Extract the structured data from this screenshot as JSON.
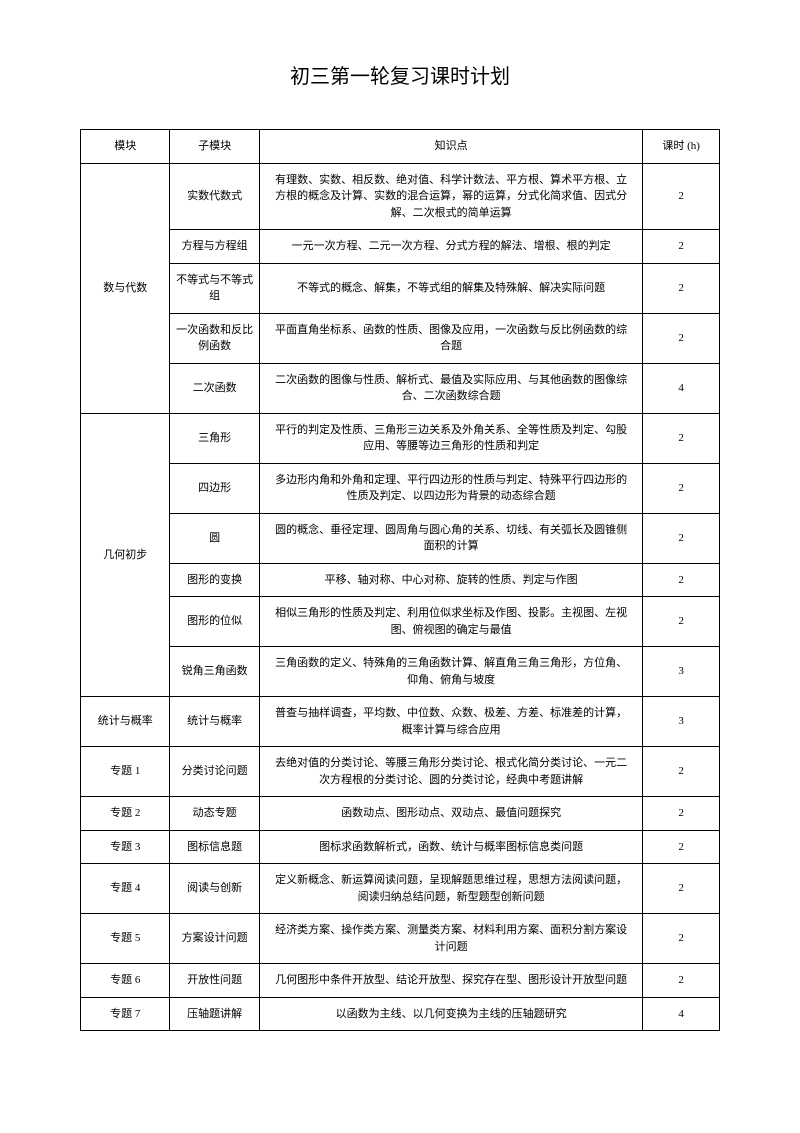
{
  "title": "初三第一轮复习课时计划",
  "headers": {
    "module": "模块",
    "sub": "子模块",
    "knowledge": "知识点",
    "hours": "课时 (h)"
  },
  "modules": [
    {
      "name": "数与代数",
      "rows": [
        {
          "sub": "实数代数式",
          "knowledge": "有理数、实数、相反数、绝对值、科学计数法、平方根、算术平方根、立方根的概念及计算、实数的混合运算，幂的运算，分式化简求值、因式分解、二次根式的简单运算",
          "hours": "2"
        },
        {
          "sub": "方程与方程组",
          "knowledge": "一元一次方程、二元一次方程、分式方程的解法、增根、根的判定",
          "hours": "2"
        },
        {
          "sub": "不等式与不等式组",
          "knowledge": "不等式的概念、解集，不等式组的解集及特殊解、解决实际问题",
          "hours": "2"
        },
        {
          "sub": "一次函数和反比例函数",
          "knowledge": "平面直角坐标系、函数的性质、图像及应用，一次函数与反比例函数的综合题",
          "hours": "2"
        },
        {
          "sub": "二次函数",
          "knowledge": "二次函数的图像与性质、解析式、最值及实际应用、与其他函数的图像综合、二次函数综合题",
          "hours": "4"
        }
      ]
    },
    {
      "name": "几何初步",
      "rows": [
        {
          "sub": "三角形",
          "knowledge": "平行的判定及性质、三角形三边关系及外角关系、全等性质及判定、勾股应用、等腰等边三角形的性质和判定",
          "hours": "2"
        },
        {
          "sub": "四边形",
          "knowledge": "多边形内角和外角和定理、平行四边形的性质与判定、特殊平行四边形的性质及判定、以四边形为背景的动态综合题",
          "hours": "2"
        },
        {
          "sub": "圆",
          "knowledge": "圆的概念、垂径定理、圆周角与圆心角的关系、切线、有关弧长及圆锥侧面积的计算",
          "hours": "2"
        },
        {
          "sub": "图形的变换",
          "knowledge": "平移、轴对称、中心对称、旋转的性质、判定与作图",
          "hours": "2"
        },
        {
          "sub": "图形的位似",
          "knowledge": "相似三角形的性质及判定、利用位似求坐标及作图、投影。主视图、左视图、俯视图的确定与最值",
          "hours": "2"
        },
        {
          "sub": "锐角三角函数",
          "knowledge": "三角函数的定义、特殊角的三角函数计算、解直角三角三角形，方位角、仰角、俯角与坡度",
          "hours": "3"
        }
      ]
    },
    {
      "name": "统计与概率",
      "rows": [
        {
          "sub": "统计与概率",
          "knowledge": "普查与抽样调查，平均数、中位数、众数、极差、方差、标准差的计算，概率计算与综合应用",
          "hours": "3"
        }
      ]
    },
    {
      "name": "专题 1",
      "rows": [
        {
          "sub": "分类讨论问题",
          "knowledge": "去绝对值的分类讨论、等腰三角形分类讨论、根式化简分类讨论、一元二次方程根的分类讨论、圆的分类讨论，经典中考题讲解",
          "hours": "2"
        }
      ]
    },
    {
      "name": "专题 2",
      "rows": [
        {
          "sub": "动态专题",
          "knowledge": "函数动点、图形动点、双动点、最值问题探究",
          "hours": "2"
        }
      ]
    },
    {
      "name": "专题 3",
      "rows": [
        {
          "sub": "图标信息题",
          "knowledge": "图标求函数解析式，函数、统计与概率图标信息类问题",
          "hours": "2"
        }
      ]
    },
    {
      "name": "专题 4",
      "rows": [
        {
          "sub": "阅读与创新",
          "knowledge": "定义新概念、新运算阅读问题，呈现解题思维过程，思想方法阅读问题，阅读归纳总结问题，新型题型创新问题",
          "hours": "2"
        }
      ]
    },
    {
      "name": "专题 5",
      "rows": [
        {
          "sub": "方案设计问题",
          "knowledge": "经济类方案、操作类方案、测量类方案、材料利用方案、面积分割方案设计问题",
          "hours": "2"
        }
      ]
    },
    {
      "name": "专题 6",
      "rows": [
        {
          "sub": "开放性问题",
          "knowledge": "几何图形中条件开放型、结论开放型、探究存在型、图形设计开放型问题",
          "hours": "2"
        }
      ]
    },
    {
      "name": "专题 7",
      "rows": [
        {
          "sub": "压轴题讲解",
          "knowledge": "以函数为主线、以几何变换为主线的压轴题研究",
          "hours": "4"
        }
      ]
    }
  ]
}
